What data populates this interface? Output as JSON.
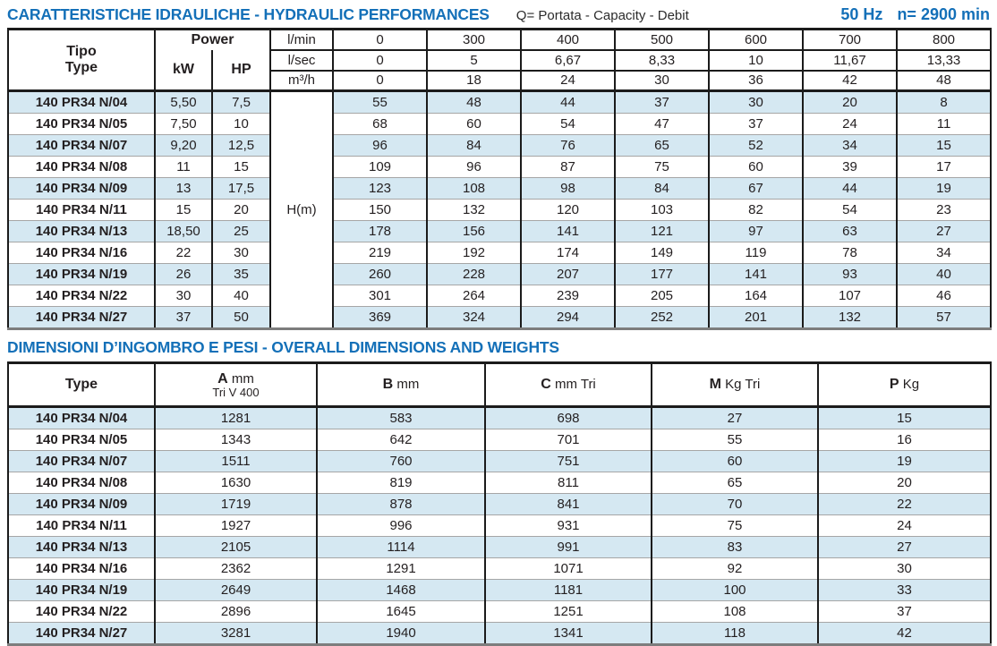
{
  "page": {
    "section1_title": "CARATTERISTICHE IDRAULICHE - HYDRAULIC PERFORMANCES",
    "section1_subtitle": "Q= Portata - Capacity - Debit",
    "frequency": "50 Hz",
    "speed": "n= 2900 min",
    "section2_title": "DIMENSIONI D’INGOMBRO E PESI - OVERALL DIMENSIONS AND WEIGHTS"
  },
  "colors": {
    "title_blue": "#1470b8",
    "row_stripe_blue": "#d5e8f2",
    "border_dark": "#1b1b1b",
    "separator_gray": "#a6a6a6",
    "text": "#231f20"
  },
  "hydraulic_table": {
    "type_header": {
      "line1": "Tipo",
      "line2": "Type"
    },
    "power_header": "Power",
    "kw_header": "kW",
    "hp_header": "HP",
    "head_unit": "H(m)",
    "flow_rows": [
      {
        "unit": "l/min",
        "values": [
          "0",
          "300",
          "400",
          "500",
          "600",
          "700",
          "800"
        ]
      },
      {
        "unit": "l/sec",
        "values": [
          "0",
          "5",
          "6,67",
          "8,33",
          "10",
          "11,67",
          "13,33"
        ]
      },
      {
        "unit": "m³/h",
        "values": [
          "0",
          "18",
          "24",
          "30",
          "36",
          "42",
          "48"
        ]
      }
    ],
    "rows": [
      {
        "model": "140 PR34 N/04",
        "kw": "5,50",
        "hp": "7,5",
        "head": [
          "55",
          "48",
          "44",
          "37",
          "30",
          "20",
          "8"
        ]
      },
      {
        "model": "140 PR34 N/05",
        "kw": "7,50",
        "hp": "10",
        "head": [
          "68",
          "60",
          "54",
          "47",
          "37",
          "24",
          "11"
        ]
      },
      {
        "model": "140 PR34 N/07",
        "kw": "9,20",
        "hp": "12,5",
        "head": [
          "96",
          "84",
          "76",
          "65",
          "52",
          "34",
          "15"
        ]
      },
      {
        "model": "140 PR34 N/08",
        "kw": "11",
        "hp": "15",
        "head": [
          "109",
          "96",
          "87",
          "75",
          "60",
          "39",
          "17"
        ]
      },
      {
        "model": "140 PR34 N/09",
        "kw": "13",
        "hp": "17,5",
        "head": [
          "123",
          "108",
          "98",
          "84",
          "67",
          "44",
          "19"
        ]
      },
      {
        "model": "140 PR34 N/11",
        "kw": "15",
        "hp": "20",
        "head": [
          "150",
          "132",
          "120",
          "103",
          "82",
          "54",
          "23"
        ]
      },
      {
        "model": "140 PR34 N/13",
        "kw": "18,50",
        "hp": "25",
        "head": [
          "178",
          "156",
          "141",
          "121",
          "97",
          "63",
          "27"
        ]
      },
      {
        "model": "140 PR34 N/16",
        "kw": "22",
        "hp": "30",
        "head": [
          "219",
          "192",
          "174",
          "149",
          "119",
          "78",
          "34"
        ]
      },
      {
        "model": "140 PR34 N/19",
        "kw": "26",
        "hp": "35",
        "head": [
          "260",
          "228",
          "207",
          "177",
          "141",
          "93",
          "40"
        ]
      },
      {
        "model": "140 PR34 N/22",
        "kw": "30",
        "hp": "40",
        "head": [
          "301",
          "264",
          "239",
          "205",
          "164",
          "107",
          "46"
        ]
      },
      {
        "model": "140 PR34 N/27",
        "kw": "37",
        "hp": "50",
        "head": [
          "369",
          "324",
          "294",
          "252",
          "201",
          "132",
          "57"
        ]
      }
    ]
  },
  "dimensions_table": {
    "type_header": "Type",
    "columns": [
      {
        "letter": "A",
        "unit": " mm",
        "sub": "Tri V 400"
      },
      {
        "letter": "B",
        "unit": " mm",
        "sub": ""
      },
      {
        "letter": "C",
        "unit": " mm Tri",
        "sub": ""
      },
      {
        "letter": "M",
        "unit": " Kg Tri",
        "sub": ""
      },
      {
        "letter": "P",
        "unit": " Kg",
        "sub": ""
      }
    ],
    "rows": [
      {
        "model": "140 PR34 N/04",
        "values": [
          "1281",
          "583",
          "698",
          "27",
          "15"
        ]
      },
      {
        "model": "140 PR34 N/05",
        "values": [
          "1343",
          "642",
          "701",
          "55",
          "16"
        ]
      },
      {
        "model": "140 PR34 N/07",
        "values": [
          "1511",
          "760",
          "751",
          "60",
          "19"
        ]
      },
      {
        "model": "140 PR34 N/08",
        "values": [
          "1630",
          "819",
          "811",
          "65",
          "20"
        ]
      },
      {
        "model": "140 PR34 N/09",
        "values": [
          "1719",
          "878",
          "841",
          "70",
          "22"
        ]
      },
      {
        "model": "140 PR34 N/11",
        "values": [
          "1927",
          "996",
          "931",
          "75",
          "24"
        ]
      },
      {
        "model": "140 PR34 N/13",
        "values": [
          "2105",
          "1114",
          "991",
          "83",
          "27"
        ]
      },
      {
        "model": "140 PR34 N/16",
        "values": [
          "2362",
          "1291",
          "1071",
          "92",
          "30"
        ]
      },
      {
        "model": "140 PR34 N/19",
        "values": [
          "2649",
          "1468",
          "1181",
          "100",
          "33"
        ]
      },
      {
        "model": "140 PR34 N/22",
        "values": [
          "2896",
          "1645",
          "1251",
          "108",
          "37"
        ]
      },
      {
        "model": "140 PR34 N/27",
        "values": [
          "3281",
          "1940",
          "1341",
          "118",
          "42"
        ]
      }
    ]
  }
}
